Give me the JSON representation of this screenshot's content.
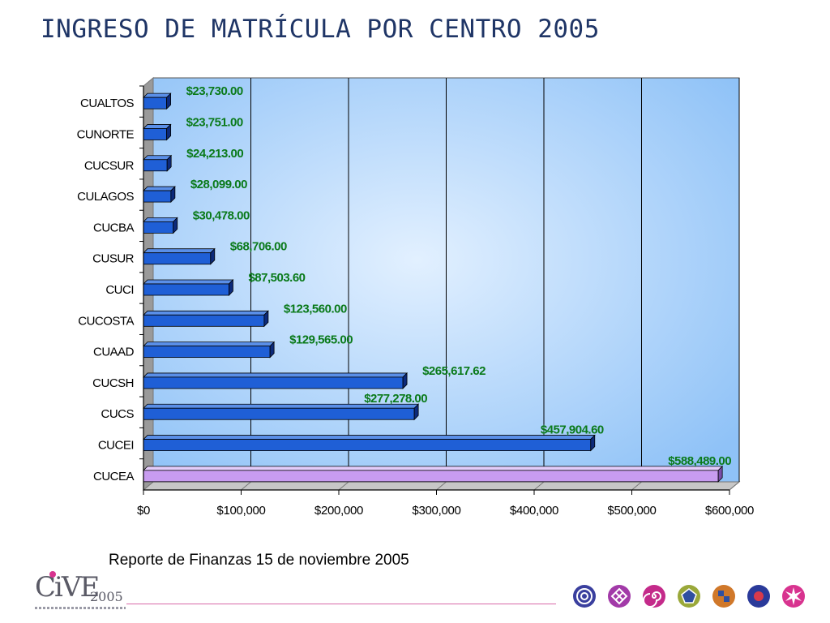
{
  "title": "INGRESO DE MATRÍCULA POR CENTRO 2005",
  "footer_text": "Reporte de Finanzas 15 de noviembre 2005",
  "logo": {
    "mark": "CiVE",
    "year": "2005"
  },
  "colors": {
    "bar": "#1f5fd6",
    "bar_dark": "#0c2a7a",
    "bar_highlight": "#c89cf0",
    "bar_highlight_dark": "#7a4ea8",
    "label": "#0a7a1a",
    "plot_bg": "#a9d1fb",
    "gridline": "#000000"
  },
  "chart_data": {
    "type": "bar",
    "orientation": "horizontal",
    "categories": [
      "CUALTOS",
      "CUNORTE",
      "CUCSUR",
      "CULAGOS",
      "CUCBA",
      "CUSUR",
      "CUCI",
      "CUCOSTA",
      "CUAAD",
      "CUCSH",
      "CUCS",
      "CUCEI",
      "CUCEA"
    ],
    "values": [
      23730.0,
      23751.0,
      24213.0,
      28099.0,
      30478.0,
      68706.0,
      87503.6,
      123560.0,
      129565.0,
      265617.62,
      277278.0,
      457904.6,
      588489.0
    ],
    "value_labels": [
      "$23,730.00",
      "$23,751.00",
      "$24,213.00",
      "$28,099.00",
      "$30,478.00",
      "$68,706.00",
      "$87,503.60",
      "$123,560.00",
      "$129,565.00",
      "$265,617.62",
      "$277,278.00",
      "$457,904.60",
      "$588,489.00"
    ],
    "highlighted_category": "CUCEA",
    "xlim": [
      0,
      600000
    ],
    "x_ticks": [
      0,
      100000,
      200000,
      300000,
      400000,
      500000,
      600000
    ],
    "x_tick_labels": [
      "$0",
      "$100,000",
      "$200,000",
      "$300,000",
      "$400,000",
      "$500,000",
      "$600,000"
    ],
    "grid": true,
    "legend": "none"
  },
  "icons": [
    {
      "name": "target-icon",
      "color": "#3a3f9e",
      "inner": "#ffffff"
    },
    {
      "name": "diamond-cross-icon",
      "color": "#a23aa8",
      "inner": "#ffffff"
    },
    {
      "name": "spiral-icon",
      "color": "#c42a8a",
      "inner": "#ffffff"
    },
    {
      "name": "pentagon-icon",
      "color": "#9aa83a",
      "inner": "#2f4fa0"
    },
    {
      "name": "checker-icon",
      "color": "#d0782a",
      "inner": "#2f4fa0"
    },
    {
      "name": "dot-icon",
      "color": "#2a3a9a",
      "inner": "#d83a4a"
    },
    {
      "name": "starburst-icon",
      "color": "#d8338f",
      "inner": "#ffffff"
    }
  ]
}
